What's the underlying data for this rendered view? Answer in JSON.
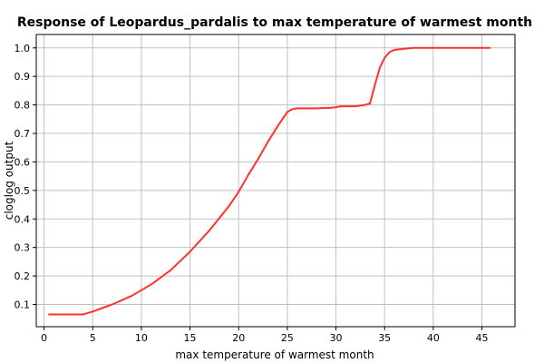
{
  "chart_data": {
    "type": "line",
    "title": "Response of Leopardus_pardalis to max temperature of warmest month",
    "xlabel": "max temperature of warmest month",
    "ylabel": "cloglog output",
    "xlim": [
      -0.8,
      48.4
    ],
    "ylim": [
      0.022,
      1.047
    ],
    "x_ticks": [
      0,
      5,
      10,
      15,
      20,
      25,
      30,
      35,
      40,
      45
    ],
    "y_ticks": [
      0.1,
      0.2,
      0.3,
      0.4,
      0.5,
      0.6,
      0.7,
      0.8,
      0.9,
      1.0
    ],
    "x_tick_labels": [
      "0",
      "5",
      "10",
      "15",
      "20",
      "25",
      "30",
      "35",
      "40",
      "45"
    ],
    "y_tick_labels": [
      "0.1",
      "0.2",
      "0.3",
      "0.4",
      "0.5",
      "0.6",
      "0.7",
      "0.8",
      "0.9",
      "1.0"
    ],
    "grid": true,
    "series": [
      {
        "color": "#ff3030",
        "x": [
          0.5,
          4.0,
          5.0,
          7.0,
          9.0,
          11.0,
          13.0,
          15.0,
          17.0,
          19.0,
          20.0,
          21.0,
          22.0,
          23.0,
          24.0,
          25.0,
          25.5,
          26.0,
          28.0,
          29.5,
          30.0,
          30.5,
          32.0,
          33.0,
          33.5,
          34.0,
          34.5,
          35.0,
          35.5,
          36.0,
          37.0,
          38.0,
          40.0,
          45.8
        ],
        "y": [
          0.065,
          0.065,
          0.075,
          0.1,
          0.13,
          0.17,
          0.22,
          0.285,
          0.36,
          0.445,
          0.495,
          0.555,
          0.61,
          0.67,
          0.725,
          0.775,
          0.785,
          0.788,
          0.788,
          0.79,
          0.792,
          0.795,
          0.795,
          0.8,
          0.805,
          0.87,
          0.93,
          0.965,
          0.985,
          0.993,
          0.997,
          1.0,
          1.0,
          1.0
        ]
      }
    ]
  }
}
